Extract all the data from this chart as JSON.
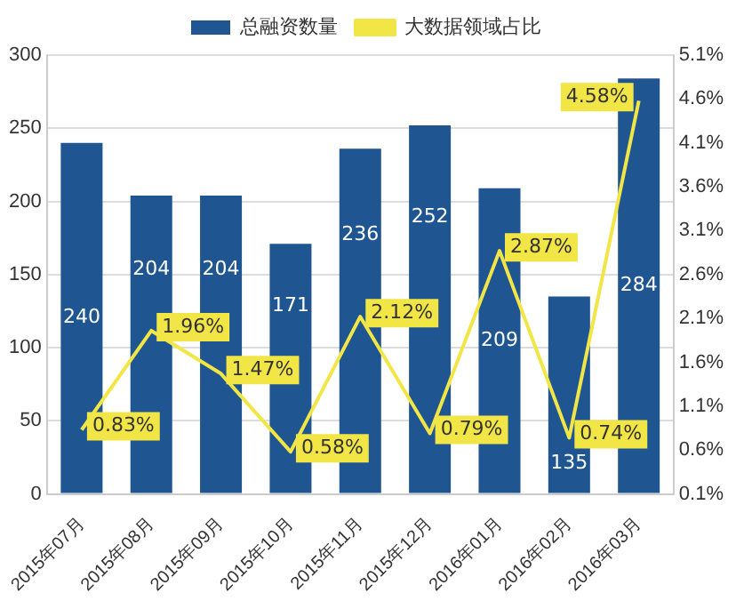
{
  "chart_data": {
    "type": "bar",
    "categories": [
      "2015年07月",
      "2015年08月",
      "2015年09月",
      "2015年10月",
      "2015年11月",
      "2015年12月",
      "2016年01月",
      "2016年02月",
      "2016年03月"
    ],
    "series": [
      {
        "name": "总融资数量",
        "color": "#1f5591",
        "values": [
          240,
          204,
          204,
          171,
          236,
          252,
          209,
          135,
          284
        ],
        "value_labels": [
          "240",
          "204",
          "204",
          "171",
          "236",
          "252",
          "209",
          "135",
          "284"
        ]
      },
      {
        "name": "大数据领域占比",
        "type": "line",
        "axis": "y2",
        "color": "#f2e646",
        "values": [
          0.83,
          1.96,
          1.47,
          0.58,
          2.12,
          0.79,
          2.87,
          0.74,
          4.58
        ],
        "value_labels": [
          "0.83%",
          "1.96%",
          "1.47%",
          "0.58%",
          "2.12%",
          "0.79%",
          "2.87%",
          "0.74%",
          "4.58%"
        ]
      }
    ],
    "ylim": [
      0,
      300
    ],
    "yticks": [
      0,
      50,
      100,
      150,
      200,
      250,
      300
    ],
    "y2lim": [
      0.1,
      5.1
    ],
    "y2ticks": [
      {
        "value": 0.1,
        "label": "0.1%"
      },
      {
        "value": 0.6,
        "label": "0.6%"
      },
      {
        "value": 1.1,
        "label": "1.1%"
      },
      {
        "value": 1.6,
        "label": "1.6%"
      },
      {
        "value": 2.1,
        "label": "2.1%"
      },
      {
        "value": 2.6,
        "label": "2.6%"
      },
      {
        "value": 3.1,
        "label": "3.1%"
      },
      {
        "value": 3.6,
        "label": "3.6%"
      },
      {
        "value": 4.1,
        "label": "4.1%"
      },
      {
        "value": 4.6,
        "label": "4.6%"
      },
      {
        "value": 5.1,
        "label": "5.1%"
      }
    ],
    "grid": "y",
    "legend": "top",
    "marker": "none",
    "line_style": "solid"
  }
}
